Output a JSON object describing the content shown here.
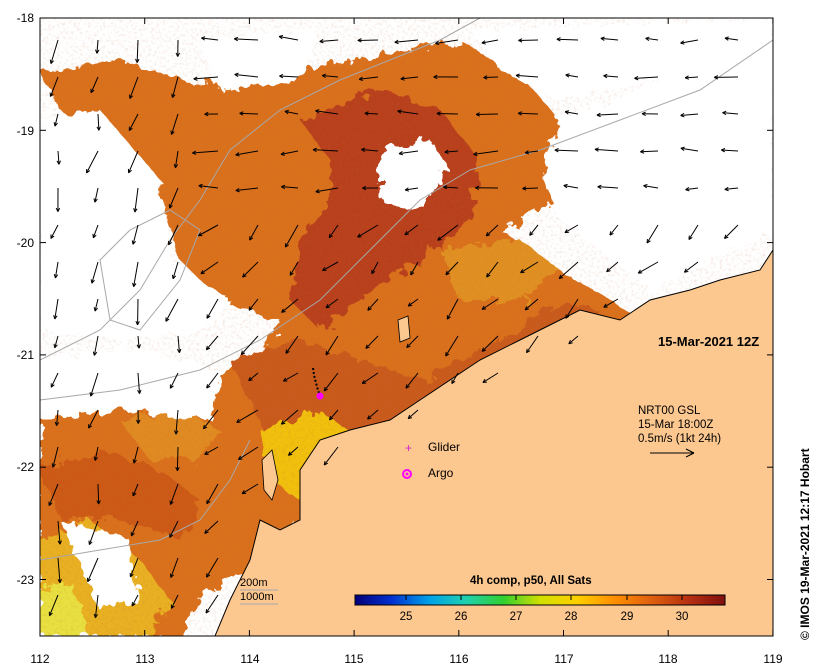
{
  "map": {
    "x_ticks": [
      "112",
      "113",
      "114",
      "115",
      "116",
      "117",
      "118",
      "119"
    ],
    "y_ticks": [
      "-18",
      "-19",
      "-20",
      "-21",
      "-22",
      "-23"
    ],
    "date_label": "15-Mar-2021 12Z",
    "currents": {
      "line1": "NRT00 GSL",
      "line2": "15-Mar 18:00Z",
      "line3": "0.5m/s (1kt 24h)"
    },
    "legend": {
      "glider": "Glider",
      "argo": "Argo",
      "glider_color": "#d020d0",
      "argo_color": "#ff00ff"
    },
    "isobaths": {
      "shallow": "200m",
      "deep": "1000m"
    },
    "colorbar": {
      "title": "4h comp, p50, All Sats",
      "ticks": [
        "25",
        "26",
        "27",
        "28",
        "29",
        "30"
      ],
      "colors": [
        "#00007a",
        "#0030d0",
        "#00a0e8",
        "#20d0b0",
        "#30d030",
        "#d0e000",
        "#ffd000",
        "#ff9000",
        "#e06010",
        "#b83010",
        "#801010"
      ]
    },
    "land_color": "#fcc890",
    "credit": "© IMOS 19-Mar-2021 12:17 Hobart"
  }
}
